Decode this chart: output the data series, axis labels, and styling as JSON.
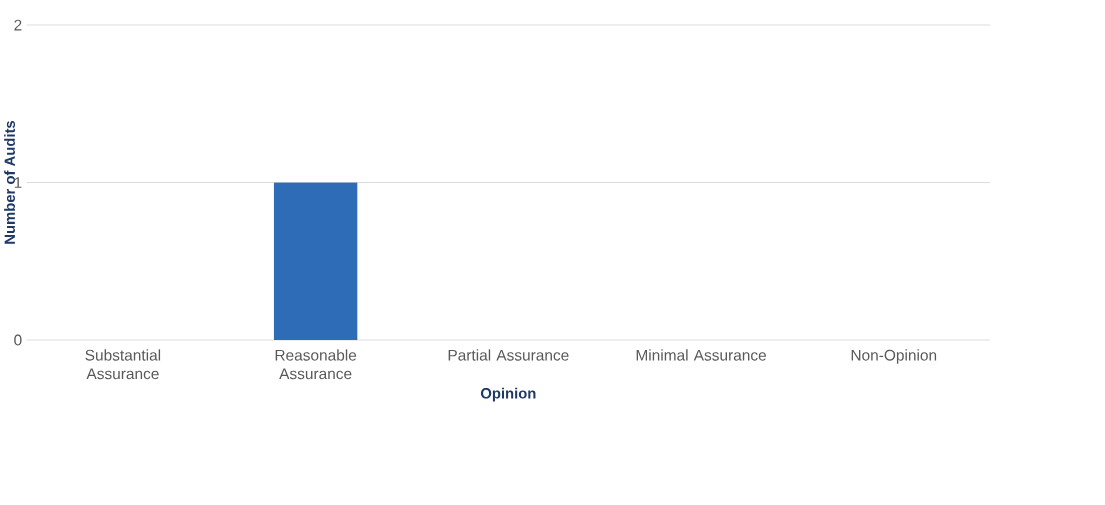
{
  "chart_data": {
    "type": "bar",
    "xlabel": "Opinion",
    "ylabel": "Number of Audits",
    "categories": [
      "Substantial Assurance",
      "Reasonable Assurance",
      "Partial Assurance",
      "Minimal Assurance",
      "Non-Opinion"
    ],
    "values": [
      0,
      1,
      0,
      0,
      0
    ],
    "color": "#2f6cb8",
    "ylim": [
      0,
      2
    ],
    "yticks": [
      0,
      1,
      2
    ],
    "grid": "y"
  }
}
